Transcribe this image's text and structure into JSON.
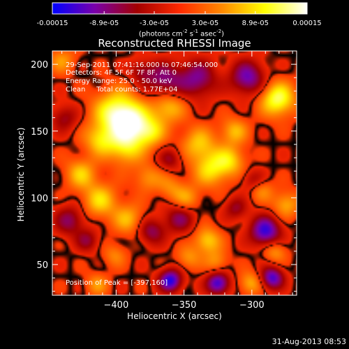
{
  "colorbar": {
    "tick_labels": [
      "-0.00015",
      "-8.9e-05",
      "-3.0e-05",
      "3.0e-05",
      "8.9e-05",
      "0.00015"
    ],
    "tick_values": [
      -0.00015,
      -8.9e-05,
      -3e-05,
      3e-05,
      8.9e-05,
      0.00015
    ],
    "range": [
      -0.00015,
      0.00015
    ],
    "units_label": "(photons cm-2 s-1 asec-2)"
  },
  "chart_data": {
    "type": "heatmap",
    "title": "Reconstructed RHESSI Image",
    "xlabel": "Heliocentric X (arcsec)",
    "ylabel": "Heliocentric Y (arcsec)",
    "xlim": [
      -447,
      -267
    ],
    "ylim": [
      27,
      210
    ],
    "x_ticks": [
      -400,
      -350,
      -300
    ],
    "y_ticks": [
      50,
      100,
      150,
      200
    ],
    "x_tick_labels": [
      "−400",
      "−350",
      "−300"
    ],
    "y_tick_labels": [
      "50",
      "100",
      "150",
      "200"
    ],
    "colormap_stops": [
      "#0000ff",
      "#7a00aa",
      "#a30000",
      "#ff2a00",
      "#ff8a00",
      "#ffff00",
      "#ffffff"
    ],
    "background_color": "#000000",
    "peak_position": [
      -397,
      160
    ],
    "sources": [
      {
        "x": -399,
        "y": 163,
        "amp": 0.85,
        "sigma": 12
      },
      {
        "x": -388,
        "y": 155,
        "amp": 0.55,
        "sigma": 10
      },
      {
        "x": -412,
        "y": 143,
        "amp": 0.5,
        "sigma": 8
      },
      {
        "x": -393,
        "y": 137,
        "amp": 0.55,
        "sigma": 9
      },
      {
        "x": -375,
        "y": 149,
        "amp": 0.5,
        "sigma": 8
      },
      {
        "x": -362,
        "y": 169,
        "amp": 0.55,
        "sigma": 9
      },
      {
        "x": -339,
        "y": 140,
        "amp": 0.5,
        "sigma": 9
      },
      {
        "x": -330,
        "y": 121,
        "amp": 0.55,
        "sigma": 9
      },
      {
        "x": -316,
        "y": 128,
        "amp": 0.5,
        "sigma": 8
      },
      {
        "x": -313,
        "y": 150,
        "amp": 0.45,
        "sigma": 7
      },
      {
        "x": -281,
        "y": 174,
        "amp": 0.8,
        "sigma": 9
      },
      {
        "x": -275,
        "y": 95,
        "amp": 0.45,
        "sigma": 7
      },
      {
        "x": -426,
        "y": 118,
        "amp": 0.5,
        "sigma": 8
      },
      {
        "x": -412,
        "y": 98,
        "amp": 0.55,
        "sigma": 9
      },
      {
        "x": -391,
        "y": 84,
        "amp": 0.45,
        "sigma": 8
      },
      {
        "x": -377,
        "y": 115,
        "amp": 0.35,
        "sigma": 7
      },
      {
        "x": -360,
        "y": 108,
        "amp": 0.3,
        "sigma": 7
      },
      {
        "x": -348,
        "y": 99,
        "amp": 0.4,
        "sigma": 7
      },
      {
        "x": -333,
        "y": 68,
        "amp": 0.55,
        "sigma": 7
      },
      {
        "x": -347,
        "y": 55,
        "amp": 0.35,
        "sigma": 6
      },
      {
        "x": -326,
        "y": 52,
        "amp": 0.35,
        "sigma": 6
      },
      {
        "x": -283,
        "y": 60,
        "amp": 0.4,
        "sigma": 6
      },
      {
        "x": -293,
        "y": 106,
        "amp": 0.35,
        "sigma": 6
      },
      {
        "x": -301,
        "y": 36,
        "amp": 0.45,
        "sigma": 6
      },
      {
        "x": -414,
        "y": 35,
        "amp": 0.35,
        "sigma": 6
      },
      {
        "x": -401,
        "y": 57,
        "amp": 0.3,
        "sigma": 6
      },
      {
        "x": -440,
        "y": 203,
        "amp": 0.35,
        "sigma": 7
      },
      {
        "x": -365,
        "y": 187,
        "amp": -0.6,
        "sigma": 10
      },
      {
        "x": -340,
        "y": 189,
        "amp": -0.6,
        "sigma": 10
      },
      {
        "x": -303,
        "y": 190,
        "amp": -0.7,
        "sigma": 9
      },
      {
        "x": -290,
        "y": 75,
        "amp": -0.85,
        "sigma": 8
      },
      {
        "x": -360,
        "y": 38,
        "amp": -0.9,
        "sigma": 6
      },
      {
        "x": -325,
        "y": 36,
        "amp": -0.85,
        "sigma": 6
      },
      {
        "x": -285,
        "y": 40,
        "amp": -0.8,
        "sigma": 6
      },
      {
        "x": -353,
        "y": 85,
        "amp": -0.5,
        "sigma": 8
      },
      {
        "x": -434,
        "y": 83,
        "amp": -0.5,
        "sigma": 8
      },
      {
        "x": -374,
        "y": 75,
        "amp": -0.5,
        "sigma": 7
      },
      {
        "x": -360,
        "y": 129,
        "amp": -0.4,
        "sigma": 6
      },
      {
        "x": -438,
        "y": 160,
        "amp": -0.4,
        "sigma": 7
      },
      {
        "x": -299,
        "y": 113,
        "amp": -0.35,
        "sigma": 6
      },
      {
        "x": -312,
        "y": 92,
        "amp": -0.4,
        "sigma": 6
      },
      {
        "x": -421,
        "y": 68,
        "amp": -0.4,
        "sigma": 6
      },
      {
        "x": -382,
        "y": 195,
        "amp": -0.35,
        "sigma": 6
      }
    ]
  },
  "info": {
    "time_range": "29-Sep-2011 07:41:16.000 to 07:46:54.000",
    "detectors": "Detectors: 4F 5F 6F 7F 8F, Att 0",
    "energy": "Energy Range: 25.0 - 50.0 keV",
    "clean": "Clean     Total counts: 1.77E+04",
    "peak_text": "Position of Peak = [-397,160]"
  },
  "footer": {
    "date": "31-Aug-2013 08:53"
  }
}
